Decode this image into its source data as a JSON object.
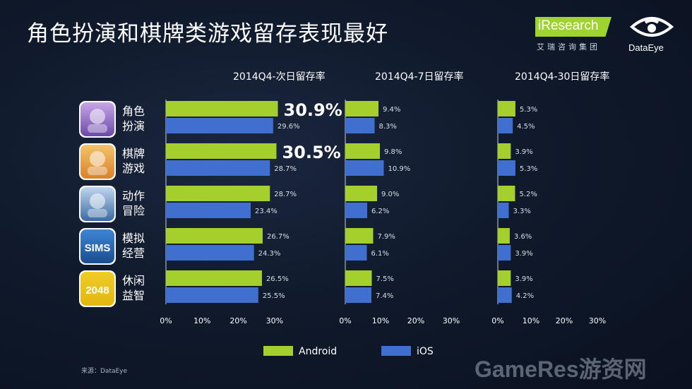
{
  "header": {
    "title": "角色扮演和棋牌类游戏留存表现最好",
    "logo_ir_text": "iResearch",
    "logo_ir_sub": "艾瑞咨询集团",
    "logo_de_text": "DataEye"
  },
  "source": "来源：DataEye",
  "watermark": "GameRes游资网",
  "colors": {
    "android": "#a5cf2c",
    "ios": "#3f6fcf"
  },
  "icons": [
    {
      "name": "rpg-game-icon",
      "label": ""
    },
    {
      "name": "card-game-icon",
      "label": ""
    },
    {
      "name": "action-game-icon",
      "label": ""
    },
    {
      "name": "sims-game-icon",
      "label": "SIMS"
    },
    {
      "name": "2048-game-icon",
      "label": "2048"
    }
  ],
  "chart_data": {
    "type": "bar",
    "orientation": "horizontal",
    "categories": [
      "角色扮演",
      "棋牌游戏",
      "动作冒险",
      "模拟经营",
      "休闲益智"
    ],
    "category_lines": [
      [
        "角色",
        "扮演"
      ],
      [
        "棋牌",
        "游戏"
      ],
      [
        "动作",
        "冒险"
      ],
      [
        "模拟",
        "经营"
      ],
      [
        "休闲",
        "益智"
      ]
    ],
    "legend": [
      "Android",
      "iOS"
    ],
    "panels": [
      {
        "title": "2014Q4-次日留存率",
        "xlim": [
          0,
          30
        ],
        "ticks": [
          "0%",
          "10%",
          "20%",
          "30%"
        ],
        "series": [
          {
            "name": "Android",
            "values": [
              30.9,
              30.5,
              28.7,
              26.7,
              26.5
            ],
            "labels": [
              "30.9%",
              "30.5%",
              "28.7%",
              "26.7%",
              "26.5%"
            ]
          },
          {
            "name": "iOS",
            "values": [
              29.6,
              28.7,
              23.4,
              24.3,
              25.5
            ],
            "labels": [
              "29.6%",
              "28.7%",
              "23.4%",
              "24.3%",
              "25.5%"
            ]
          }
        ],
        "highlight": [
          0,
          1
        ]
      },
      {
        "title": "2014Q4-7日留存率",
        "xlim": [
          0,
          30
        ],
        "ticks": [
          "0%",
          "10%",
          "20%",
          "30%"
        ],
        "series": [
          {
            "name": "Android",
            "values": [
              9.4,
              9.8,
              9.0,
              7.9,
              7.5
            ],
            "labels": [
              "9.4%",
              "9.8%",
              "9.0%",
              "7.9%",
              "7.5%"
            ]
          },
          {
            "name": "iOS",
            "values": [
              8.3,
              10.9,
              6.2,
              6.1,
              7.4
            ],
            "labels": [
              "8.3%",
              "10.9%",
              "6.2%",
              "6.1%",
              "7.4%"
            ]
          }
        ],
        "highlight": []
      },
      {
        "title": "2014Q4-30日留存率",
        "xlim": [
          0,
          30
        ],
        "ticks": [
          "0%",
          "10%",
          "20%",
          "30%"
        ],
        "series": [
          {
            "name": "Android",
            "values": [
              5.3,
              3.9,
              5.2,
              3.6,
              3.9
            ],
            "labels": [
              "5.3%",
              "3.9%",
              "5.2%",
              "3.6%",
              "3.9%"
            ]
          },
          {
            "name": "iOS",
            "values": [
              4.5,
              5.3,
              3.3,
              3.9,
              4.2
            ],
            "labels": [
              "4.5%",
              "5.3%",
              "3.3%",
              "3.9%",
              "4.2%"
            ]
          }
        ],
        "highlight": []
      }
    ]
  }
}
